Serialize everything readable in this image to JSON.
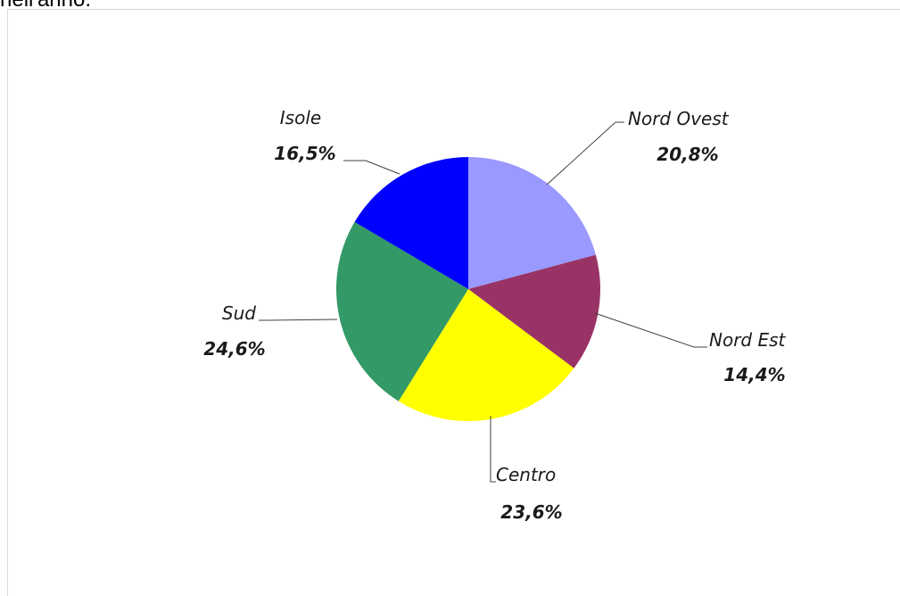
{
  "header": {
    "partial_text": "nell'anno."
  },
  "chart_data": {
    "type": "pie",
    "title": "",
    "start_angle_deg": 0,
    "direction": "clockwise",
    "slices": [
      {
        "label": "Nord Ovest",
        "value": 20.8,
        "value_label": "20,8%",
        "color": "#9999ff"
      },
      {
        "label": "Nord Est",
        "value": 14.4,
        "value_label": "14,4%",
        "color": "#993366"
      },
      {
        "label": "Centro",
        "value": 23.6,
        "value_label": "23,6%",
        "color": "#ffff00"
      },
      {
        "label": "Sud",
        "value": 24.6,
        "value_label": "24,6%",
        "color": "#339966"
      },
      {
        "label": "Isole",
        "value": 16.5,
        "value_label": "16,5%",
        "color": "#0000ff"
      }
    ],
    "legend": "none",
    "data_labels": "outside with leader lines"
  }
}
